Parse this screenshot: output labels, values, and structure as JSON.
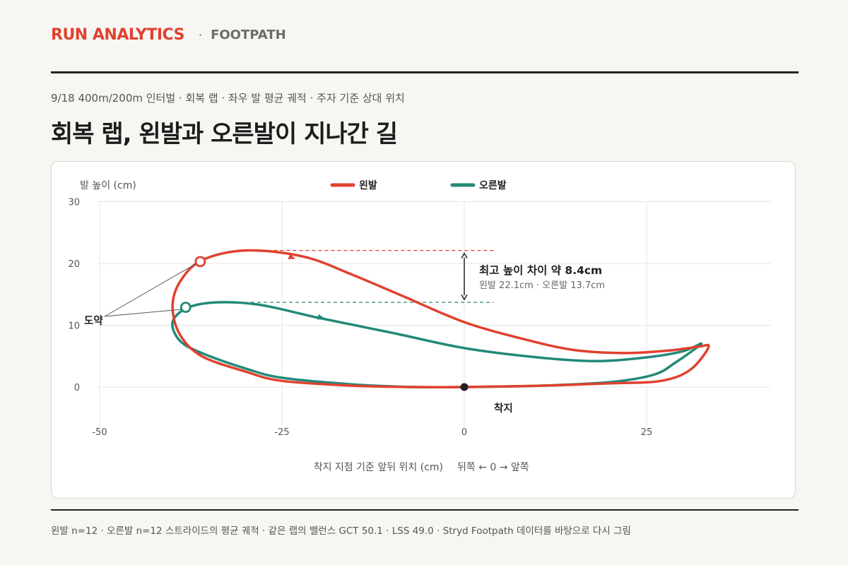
{
  "header": {
    "brand": "RUN ANALYTICS",
    "separator": "·",
    "section": "FOOTPATH"
  },
  "subtitle": "9/18 400m/200m 인터벌 · 회복 랩 · 좌우 발 평균 궤적 · 주자 기준 상대 위치",
  "title": "회복 랩, 왼발과 오른발이 지나간 길",
  "colors": {
    "left": "#e0412f",
    "right": "#23897a",
    "grid": "#e8e6e1",
    "text": "#555555"
  },
  "chart_data": {
    "type": "line",
    "ylabel": "발 높이 (cm)",
    "xlabel": "착지 지점 기준 앞뒤 위치 (cm)",
    "xlabel_hint": "뒤쪽 ← 0 → 앞쪽",
    "xlim": [
      -50,
      42
    ],
    "ylim": [
      -6.5,
      30
    ],
    "xticks": [
      -50,
      -25,
      0,
      25
    ],
    "yticks": [
      0,
      10,
      20,
      30
    ],
    "grid": true,
    "legend_position": "top",
    "series": [
      {
        "name": "왼발",
        "color": "#e0412f",
        "closed": true,
        "points": [
          [
            0,
            0
          ],
          [
            10,
            0.2
          ],
          [
            20,
            0.6
          ],
          [
            27,
            1
          ],
          [
            31,
            2.8
          ],
          [
            33.5,
            6.5
          ],
          [
            32,
            6.5
          ],
          [
            28,
            5.9
          ],
          [
            22,
            5.5
          ],
          [
            15,
            6
          ],
          [
            8,
            7.8
          ],
          [
            0,
            10.5
          ],
          [
            -8,
            14.5
          ],
          [
            -15,
            18
          ],
          [
            -22,
            21.1
          ],
          [
            -30,
            22.1
          ],
          [
            -36,
            20.5
          ],
          [
            -39,
            17
          ],
          [
            -40,
            13
          ],
          [
            -39,
            8.5
          ],
          [
            -36,
            5
          ],
          [
            -30,
            2.5
          ],
          [
            -25,
            1
          ],
          [
            -15,
            0.2
          ],
          [
            -7,
            0
          ]
        ],
        "arrow_at": [
          -23.5,
          20.9
        ],
        "takeoff": [
          -36.2,
          20.3
        ]
      },
      {
        "name": "오른발",
        "color": "#23897a",
        "closed": true,
        "points": [
          [
            0,
            0
          ],
          [
            10,
            0.2
          ],
          [
            20,
            0.8
          ],
          [
            26,
            2
          ],
          [
            29,
            4
          ],
          [
            32.5,
            7
          ],
          [
            30,
            5.8
          ],
          [
            25,
            4.8
          ],
          [
            18,
            4.2
          ],
          [
            10,
            4.8
          ],
          [
            0,
            6.3
          ],
          [
            -10,
            8.8
          ],
          [
            -20,
            11.2
          ],
          [
            -28,
            13.3
          ],
          [
            -34,
            13.7
          ],
          [
            -38,
            12.8
          ],
          [
            -40,
            10.5
          ],
          [
            -39,
            7.5
          ],
          [
            -36,
            5.5
          ],
          [
            -30,
            3
          ],
          [
            -25,
            1.5
          ],
          [
            -15,
            0.4
          ],
          [
            -7,
            0
          ]
        ],
        "arrow_at": [
          -19.5,
          11.2
        ],
        "takeoff": [
          -38.2,
          12.9
        ]
      }
    ],
    "reference_lines": [
      {
        "series": "왼발",
        "y": 22.1,
        "x_from": -27,
        "x_to": 4
      },
      {
        "series": "오른발",
        "y": 13.7,
        "x_from": -31,
        "x_to": 4
      }
    ],
    "annotations": {
      "height_diff_title": "최고 높이 차이  약 8.4cm",
      "height_diff_detail": "왼발 22.1cm · 오른발 13.7cm",
      "height_diff_x": 0,
      "takeoff_label": "도약",
      "landing_label": "착지",
      "landing_point": [
        0,
        0
      ]
    }
  },
  "footnote": "왼발 n=12 · 오른발 n=12 스트라이드의 평균 궤적 · 같은 랩의 밸런스 GCT 50.1 · LSS 49.0 · Stryd Footpath 데이터를 바탕으로 다시 그림"
}
